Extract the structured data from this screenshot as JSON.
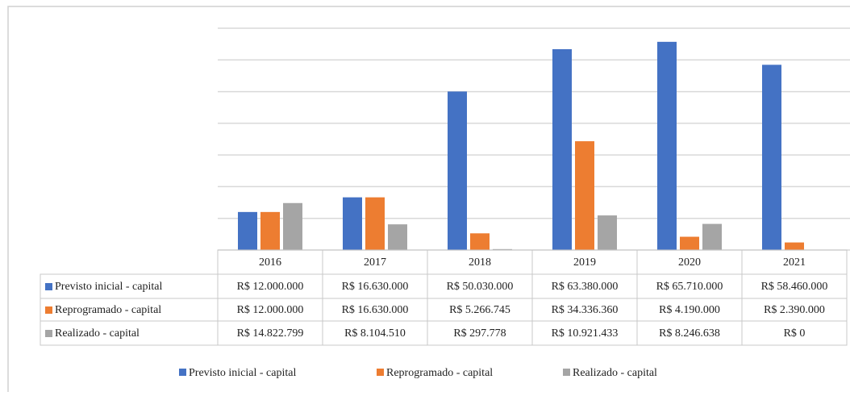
{
  "chart_data": {
    "type": "bar",
    "categories": [
      "2016",
      "2017",
      "2018",
      "2019",
      "2020",
      "2021"
    ],
    "series": [
      {
        "name": "Previsto inicial - capital",
        "color": "#4472c4",
        "values": [
          12000000,
          16630000,
          50030000,
          63380000,
          65710000,
          58460000
        ],
        "value_labels": [
          "R$ 12.000.000",
          "R$ 16.630.000",
          "R$ 50.030.000",
          "R$ 63.380.000",
          "R$ 65.710.000",
          "R$ 58.460.000"
        ]
      },
      {
        "name": "Reprogramado - capital",
        "color": "#ed7d31",
        "values": [
          12000000,
          16630000,
          5266745,
          34336360,
          4190000,
          2390000
        ],
        "value_labels": [
          "R$ 12.000.000",
          "R$ 16.630.000",
          "R$ 5.266.745",
          "R$ 34.336.360",
          "R$ 4.190.000",
          "R$ 2.390.000"
        ]
      },
      {
        "name": "Realizado - capital",
        "color": "#a5a5a5",
        "values": [
          14822799,
          8104510,
          297778,
          10921433,
          8246638,
          0
        ],
        "value_labels": [
          "R$ 14.822.799",
          "R$ 8.104.510",
          "R$ 297.778",
          "R$ 10.921.433",
          "R$ 8.246.638",
          "R$ 0"
        ]
      }
    ],
    "ylim": [
      0,
      70000000
    ],
    "yticks": [
      0,
      10000000,
      20000000,
      30000000,
      40000000,
      50000000,
      60000000,
      70000000
    ],
    "grid": true,
    "legend": "bottom"
  }
}
